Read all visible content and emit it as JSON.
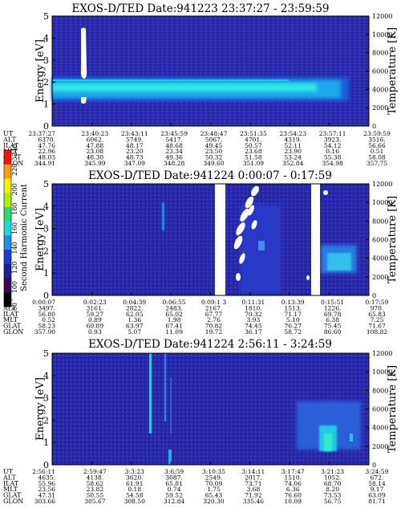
{
  "colorbar": {
    "label": "Second Harmonic Current",
    "ticks": [
      "80",
      "100",
      "120",
      "140",
      "160",
      "180",
      "200",
      "220",
      "240"
    ],
    "range": [
      80,
      240
    ],
    "colors": [
      "#000000",
      "#3a0058",
      "#1e1e9a",
      "#1c3ad6",
      "#1f8fe6",
      "#18d8e0",
      "#20e070",
      "#a8f000",
      "#fff000",
      "#ffa000",
      "#ff1000"
    ]
  },
  "chart_data": [
    {
      "type": "heatmap",
      "title": "EXOS-D/TED   Date:941223  23:37:27 - 23:59:59",
      "ylabel": "Energy [eV]",
      "ylabel_right": "Temperature [K]",
      "ylim": [
        0,
        5
      ],
      "ylim_right": [
        0,
        12000
      ],
      "yticks": [
        "0",
        "1",
        "2",
        "3",
        "4",
        "5"
      ],
      "yticks_right": [
        "0",
        "2000",
        "4000",
        "6000",
        "8000",
        "10000",
        "12000"
      ],
      "row_labels": [
        "UT",
        "ALT",
        "ILAT",
        "MLT",
        "GLAT",
        "GLON"
      ],
      "columns": [
        [
          "23:37:27",
          "6370.",
          "47.76",
          "22.96",
          "48.03",
          "344.91"
        ],
        [
          "23:40:23",
          "6062.",
          "47.88",
          "23.08",
          "48.30",
          "345.99"
        ],
        [
          "23:43:11",
          "5749.",
          "48.17",
          "23.20",
          "48.73",
          "347.09"
        ],
        [
          "23:45:59",
          "5417.",
          "48.68",
          "23.34",
          "49.36",
          "348.28"
        ],
        [
          "23:48:47",
          "5067.",
          "49.45",
          "23.50",
          "50.32",
          "349.60"
        ],
        [
          "23:51:35",
          "4701.",
          "50.57",
          "23.68",
          "51.58",
          "351.09"
        ],
        [
          "23:54:23",
          "4319.",
          "52.11",
          "23.90",
          "53.24",
          "352.84"
        ],
        [
          "23:57:11",
          "3923.",
          "54.12",
          "0.16",
          "55.38",
          "354.98"
        ],
        [
          "23:59:59",
          "3516.",
          "56.66",
          "0.51",
          "58.08",
          "357.75"
        ]
      ]
    },
    {
      "type": "heatmap",
      "title": "EXOS-D/TED   Date:941224   0:00:07 - 0:17:59",
      "ylabel": "Energy [eV]",
      "ylabel_right": "Temperature [K]",
      "ylim": [
        0,
        5
      ],
      "ylim_right": [
        0,
        12000
      ],
      "yticks": [
        "0",
        "1",
        "2",
        "3",
        "4",
        "5"
      ],
      "yticks_right": [
        "0",
        "2000",
        "4000",
        "6000",
        "8000",
        "10000",
        "12000"
      ],
      "row_labels": [
        "UT",
        "ALT",
        "ILAT",
        "MLT",
        "GLAT",
        "GLON"
      ],
      "columns": [
        [
          "0:00:07",
          "3497.",
          "56.80",
          "0.52",
          "58.23",
          "357.90"
        ],
        [
          "0:02:23",
          "3161.",
          "59.27",
          "0.89",
          "60.89",
          "0.93"
        ],
        [
          "0:04:39",
          "2822.",
          "62.05",
          "1.36",
          "63.97",
          "5.07"
        ],
        [
          "0:06:55",
          "2483.",
          "65.02",
          "1.98",
          "67.41",
          "11.09"
        ],
        [
          "0:09:1 3",
          "2167.",
          "67.77",
          "2.76",
          "70.82",
          "19.72"
        ],
        [
          "0:11:31",
          "1810.",
          "70.32",
          "3.93",
          "74.45",
          "36.17"
        ],
        [
          "0:13:39",
          "1513.",
          "71.17",
          "5.10",
          "76.27",
          "58.72"
        ],
        [
          "0:15:51",
          "1226.",
          "69.78",
          "6.38",
          "75.45",
          "86.60"
        ],
        [
          "0:17:59",
          "970.",
          "65.83",
          "7.25",
          "71.67",
          "108.82"
        ]
      ]
    },
    {
      "type": "heatmap",
      "title": "EXOS-D/TED   Date:941224   2:56:11 - 3:24:59",
      "ylabel": "Energy [eV]",
      "ylabel_right": "Temperature [K]",
      "ylim": [
        0,
        5
      ],
      "ylim_right": [
        0,
        12000
      ],
      "yticks": [
        "0",
        "1",
        "2",
        "3",
        "4",
        "5"
      ],
      "yticks_right": [
        "0",
        "2000",
        "4000",
        "6000",
        "8000",
        "10000",
        "12000"
      ],
      "row_labels": [
        "UT",
        "ALT",
        "ILAT",
        "MLT",
        "GLAT",
        "GLON"
      ],
      "columns": [
        [
          "2:56:11",
          "4635.",
          "55.96",
          "23.56",
          "47.31",
          "303.66"
        ],
        [
          "2:59:47",
          "4138.",
          "58.62",
          "23.82",
          "50.55",
          "305.67"
        ],
        [
          "3:3:23",
          "3620.",
          "61.91",
          "0.18",
          "54.58",
          "308.50"
        ],
        [
          "3:6:59",
          "3087.",
          "65.81",
          "0.74",
          "59.52",
          "312.84"
        ],
        [
          "3:10:35",
          "2549.",
          "70.09",
          "1.75",
          "65.43",
          "320.30"
        ],
        [
          "3:14:11",
          "2017.",
          "73.71",
          "3.68",
          "71.92",
          "335.46"
        ],
        [
          "3:17:47",
          "1510.",
          "74.06",
          "6.36",
          "76.60",
          "10.09"
        ],
        [
          "3:21:23",
          "1052.",
          "68.70",
          "8.20",
          "73.53",
          "56.75"
        ],
        [
          "3:24:59",
          "672.",
          "58.14",
          "9.17",
          "63.09",
          "81.71"
        ]
      ]
    }
  ]
}
